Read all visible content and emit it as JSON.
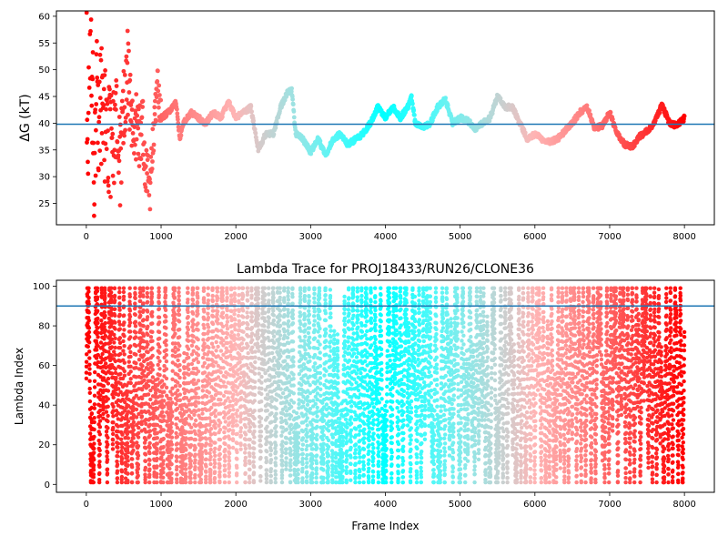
{
  "chart_data": [
    {
      "type": "scatter",
      "title": "",
      "xlabel": "",
      "ylabel": "ΔG (kT)",
      "xlim": [
        -400,
        8400
      ],
      "ylim": [
        21,
        61
      ],
      "xticks": [
        0,
        1000,
        2000,
        3000,
        4000,
        5000,
        6000,
        7000,
        8000
      ],
      "yticks": [
        25,
        30,
        35,
        40,
        45,
        50,
        55,
        60
      ],
      "grid": false,
      "reference_line_y": 39.8,
      "reference_line_color": "#1f77b4",
      "colormap": "rainbow (red at frame 0 → violet at frame 8000)",
      "trace_points": [
        [
          0,
          60
        ],
        [
          15,
          22
        ],
        [
          30,
          54
        ],
        [
          50,
          62
        ],
        [
          70,
          45
        ],
        [
          90,
          47
        ],
        [
          110,
          30
        ],
        [
          130,
          48
        ],
        [
          150,
          41
        ],
        [
          200,
          43
        ],
        [
          250,
          40
        ],
        [
          300,
          37
        ],
        [
          350,
          36
        ],
        [
          400,
          39
        ],
        [
          450,
          32
        ],
        [
          500,
          44
        ],
        [
          550,
          50
        ],
        [
          600,
          41
        ],
        [
          650,
          40
        ],
        [
          700,
          37
        ],
        [
          750,
          40
        ],
        [
          800,
          31
        ],
        [
          850,
          28
        ],
        [
          900,
          39
        ],
        [
          950,
          47
        ],
        [
          1000,
          41
        ],
        [
          1100,
          42
        ],
        [
          1200,
          44
        ],
        [
          1250,
          37
        ],
        [
          1300,
          40
        ],
        [
          1400,
          42
        ],
        [
          1500,
          41
        ],
        [
          1600,
          40
        ],
        [
          1700,
          42
        ],
        [
          1800,
          41
        ],
        [
          1900,
          44
        ],
        [
          2000,
          41
        ],
        [
          2100,
          42
        ],
        [
          2200,
          43
        ],
        [
          2300,
          35
        ],
        [
          2400,
          38
        ],
        [
          2500,
          38
        ],
        [
          2600,
          43
        ],
        [
          2700,
          46
        ],
        [
          2750,
          46
        ],
        [
          2800,
          38
        ],
        [
          2900,
          37
        ],
        [
          3000,
          34.5
        ],
        [
          3100,
          37
        ],
        [
          3200,
          34
        ],
        [
          3300,
          37
        ],
        [
          3400,
          38
        ],
        [
          3500,
          36
        ],
        [
          3600,
          37
        ],
        [
          3700,
          38
        ],
        [
          3800,
          40
        ],
        [
          3900,
          43
        ],
        [
          4000,
          41
        ],
        [
          4100,
          43
        ],
        [
          4200,
          41
        ],
        [
          4300,
          43
        ],
        [
          4350,
          45
        ],
        [
          4400,
          40
        ],
        [
          4500,
          39
        ],
        [
          4600,
          40
        ],
        [
          4700,
          43
        ],
        [
          4800,
          44.5
        ],
        [
          4900,
          40
        ],
        [
          5000,
          41
        ],
        [
          5100,
          40.5
        ],
        [
          5200,
          39
        ],
        [
          5300,
          40
        ],
        [
          5400,
          41
        ],
        [
          5500,
          45
        ],
        [
          5600,
          43
        ],
        [
          5700,
          43
        ],
        [
          5800,
          40
        ],
        [
          5900,
          37
        ],
        [
          6000,
          38
        ],
        [
          6100,
          37
        ],
        [
          6200,
          36.5
        ],
        [
          6300,
          37
        ],
        [
          6400,
          38.5
        ],
        [
          6500,
          40
        ],
        [
          6600,
          42
        ],
        [
          6700,
          43
        ],
        [
          6800,
          39
        ],
        [
          6900,
          39.5
        ],
        [
          7000,
          42
        ],
        [
          7100,
          38
        ],
        [
          7200,
          36
        ],
        [
          7300,
          35.5
        ],
        [
          7400,
          37.5
        ],
        [
          7500,
          38.5
        ],
        [
          7600,
          40
        ],
        [
          7700,
          43.5
        ],
        [
          7800,
          40
        ],
        [
          7900,
          39.5
        ],
        [
          8000,
          41
        ]
      ]
    },
    {
      "type": "scatter",
      "title": "Lambda Trace for PROJ18433/RUN26/CLONE36",
      "xlabel": "Frame Index",
      "ylabel": "Lambda Index",
      "xlim": [
        -400,
        8400
      ],
      "ylim": [
        -4,
        103
      ],
      "xticks": [
        0,
        1000,
        2000,
        3000,
        4000,
        5000,
        6000,
        7000,
        8000
      ],
      "yticks": [
        0,
        20,
        40,
        60,
        80,
        100
      ],
      "grid": false,
      "reference_line_y": 90,
      "reference_line_color": "#1f77b4",
      "colormap": "rainbow (red at frame 0 → violet at frame 8000)",
      "frame_range": [
        0,
        8000
      ],
      "lambda_range": [
        1,
        99
      ]
    }
  ]
}
